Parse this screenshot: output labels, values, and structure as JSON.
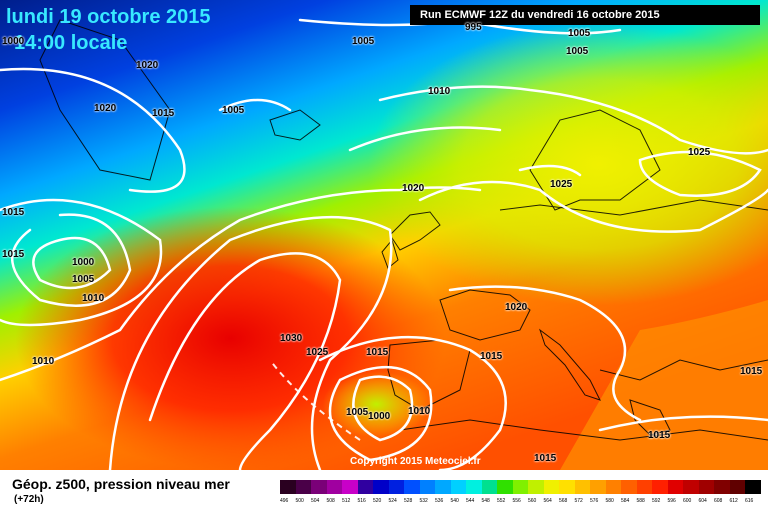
{
  "header": {
    "date": "lundi 19 octobre 2015",
    "time": "14:00 locale",
    "run": "Run ECMWF 12Z du vendredi 16 octobre 2015",
    "copyright": "Copyright 2015 Meteociel.fr"
  },
  "footer": {
    "title": "Géop. z500, pression niveau mer",
    "lead": "(+72h)"
  },
  "isobar_labels": [
    "1005",
    "1000",
    "1005",
    "1010",
    "1020",
    "1015",
    "1005",
    "1020",
    "1015",
    "1015",
    "1000",
    "1005",
    "1010",
    "1010",
    "1030",
    "1025",
    "1015",
    "1005",
    "1000",
    "1010",
    "1020",
    "1025",
    "1025",
    "1015",
    "1015",
    "1015",
    "1015",
    "995"
  ],
  "scale": {
    "values": [
      "496",
      "500",
      "504",
      "508",
      "512",
      "516",
      "520",
      "524",
      "528",
      "532",
      "536",
      "540",
      "544",
      "548",
      "552",
      "556",
      "560",
      "564",
      "568",
      "572",
      "576",
      "580",
      "584",
      "588",
      "592",
      "596",
      "600",
      "604",
      "608",
      "612",
      "616"
    ],
    "colors": [
      "#2a0020",
      "#4a0048",
      "#7a0078",
      "#a000a0",
      "#c800c8",
      "#3000a0",
      "#0000c8",
      "#0020e0",
      "#0050ff",
      "#0080ff",
      "#00a8ff",
      "#00d0ff",
      "#00f0e0",
      "#00e090",
      "#30e000",
      "#80f000",
      "#c0f000",
      "#f0f000",
      "#ffe000",
      "#ffc000",
      "#ffa000",
      "#ff8000",
      "#ff6000",
      "#ff4000",
      "#ff2000",
      "#e00000",
      "#c00000",
      "#a00000",
      "#800000",
      "#600000",
      "#000000"
    ]
  }
}
